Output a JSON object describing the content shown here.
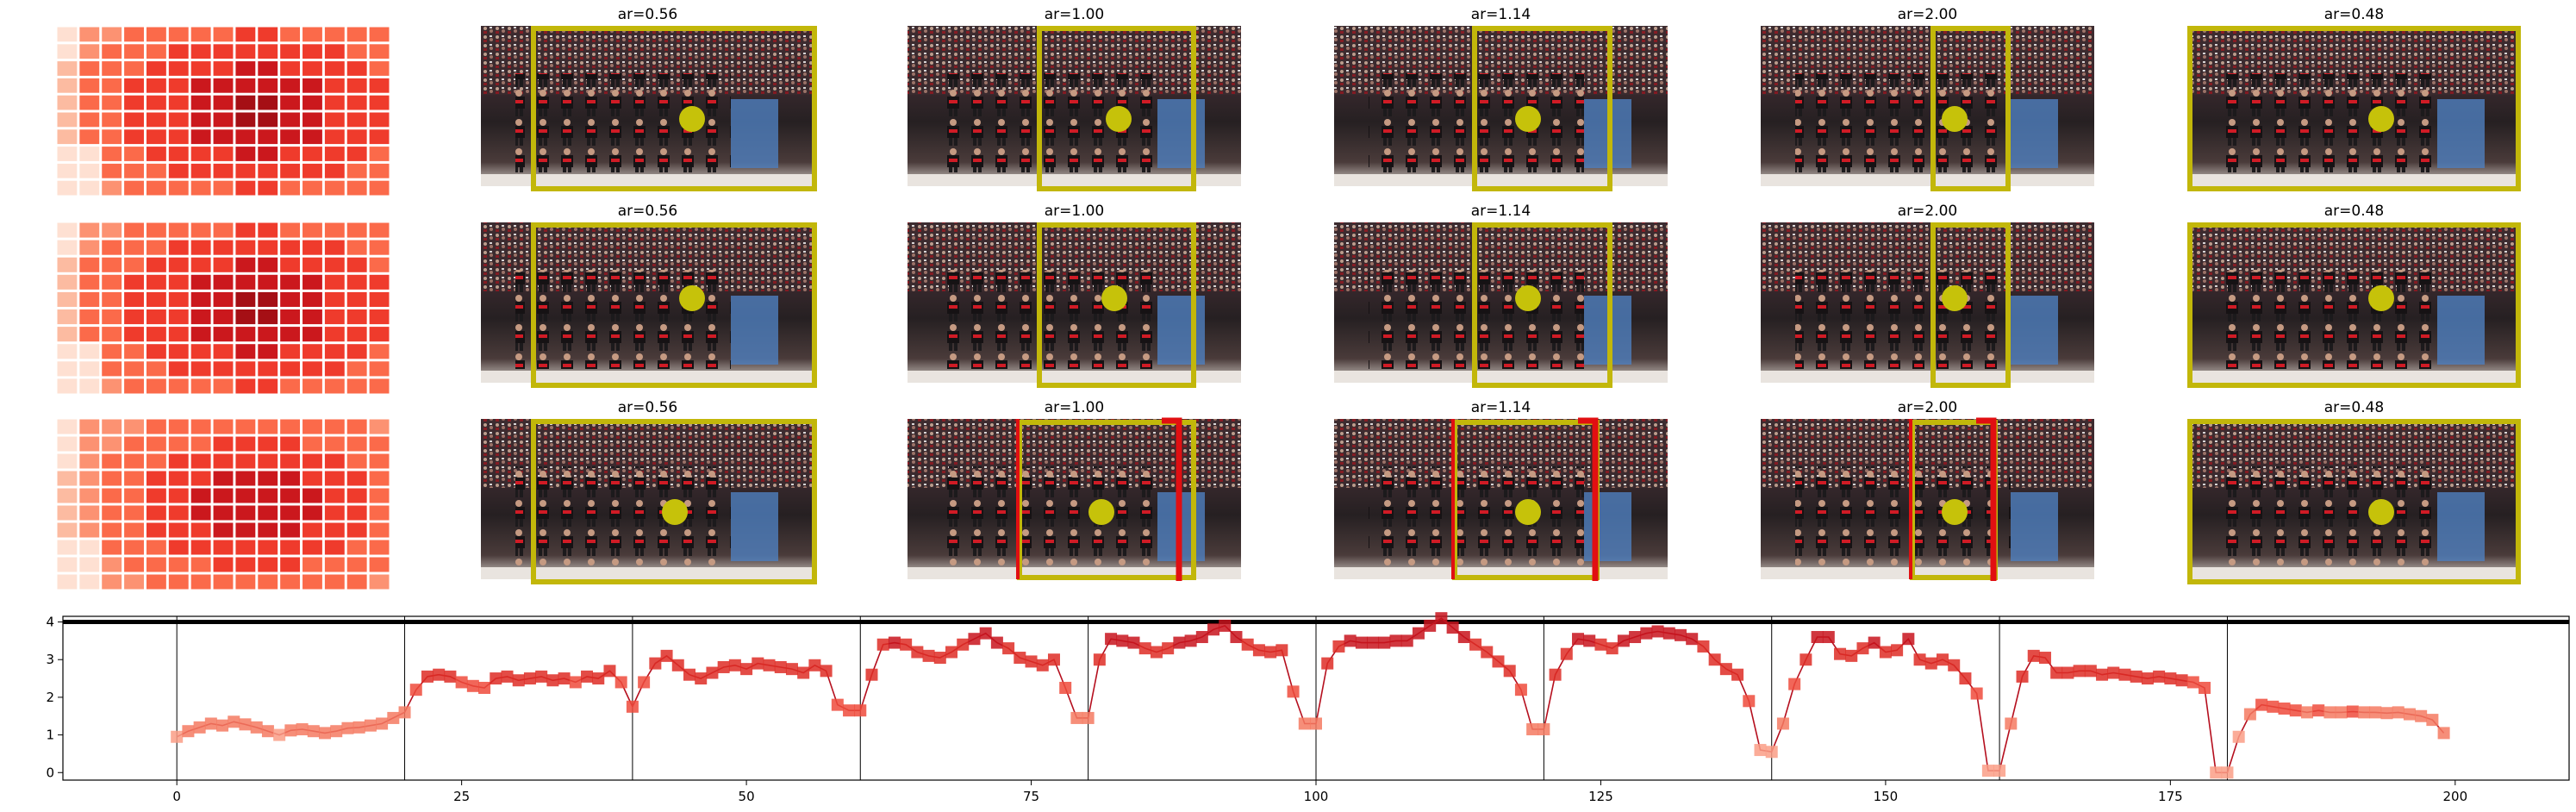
{
  "figure": {
    "panel_titles": [
      "ar=0.56",
      "ar=1.00",
      "ar=1.14",
      "ar=2.00",
      "ar=0.48"
    ],
    "box_color": "#c2b70a",
    "point_color": "#c6c20a",
    "extra_box_color": "#e10f12",
    "heatmap_colormap": "Reds"
  },
  "chart_data": [
    {
      "type": "line",
      "title": "",
      "xlabel": "",
      "ylabel": "",
      "xlim": [
        -10,
        210
      ],
      "ylim": [
        -0.2,
        4.15
      ],
      "xticks": [
        0,
        25,
        50,
        75,
        100,
        125,
        150,
        175,
        200
      ],
      "yticks": [
        0,
        1,
        2,
        3,
        4
      ],
      "vlines": [
        0,
        20,
        40,
        60,
        80,
        100,
        120,
        140,
        160,
        180
      ],
      "hline": 4.0,
      "line_color": "#b50f1e",
      "marker": "square",
      "series": [
        {
          "x_start": 0,
          "values": [
            0.95,
            1.1,
            1.2,
            1.3,
            1.25,
            1.35,
            1.28,
            1.2,
            1.1,
            1.0,
            1.12,
            1.15,
            1.1,
            1.05,
            1.1,
            1.18,
            1.2,
            1.25,
            1.3,
            1.45,
            1.6,
            2.2,
            2.55,
            2.6,
            2.55,
            2.4,
            2.3,
            2.25,
            2.5,
            2.55,
            2.45,
            2.5,
            2.55,
            2.45,
            2.5,
            2.4,
            2.55,
            2.5,
            2.7,
            2.4,
            1.75,
            2.4,
            2.9,
            3.1,
            2.85,
            2.6,
            2.5,
            2.65,
            2.8,
            2.85,
            2.75,
            2.9,
            2.85,
            2.8,
            2.75,
            2.65,
            2.85,
            2.7,
            1.8,
            1.65,
            1.65,
            2.6,
            3.4,
            3.45,
            3.4,
            3.2,
            3.1,
            3.05,
            3.2,
            3.4,
            3.55,
            3.7,
            3.45,
            3.3,
            3.05,
            2.95,
            2.85,
            3.0,
            2.25,
            1.45,
            1.45,
            3.0,
            3.55,
            3.5,
            3.45,
            3.3,
            3.2,
            3.3,
            3.45,
            3.5,
            3.6,
            3.8,
            3.9,
            3.6,
            3.4,
            3.25,
            3.2,
            3.25,
            2.15,
            1.3,
            1.3,
            2.9,
            3.35,
            3.5,
            3.45,
            3.45,
            3.45,
            3.5,
            3.5,
            3.7,
            3.9,
            4.1,
            3.85,
            3.6,
            3.4,
            3.2,
            2.95,
            2.7,
            2.2,
            1.15,
            1.15,
            2.6,
            3.15,
            3.55,
            3.5,
            3.4,
            3.3,
            3.5,
            3.6,
            3.7,
            3.75,
            3.7,
            3.65,
            3.55,
            3.35,
            3.0,
            2.75,
            2.6,
            1.9,
            0.6,
            0.55,
            1.3,
            2.35,
            3.0,
            3.6,
            3.6,
            3.15,
            3.1,
            3.3,
            3.45,
            3.2,
            3.25,
            3.55,
            3.0,
            2.9,
            3.0,
            2.85,
            2.5,
            2.1,
            0.05,
            0.05,
            1.3,
            2.55,
            3.1,
            3.05,
            2.65,
            2.65,
            2.7,
            2.7,
            2.6,
            2.65,
            2.6,
            2.55,
            2.5,
            2.55,
            2.5,
            2.45,
            2.4,
            2.25,
            0.0,
            0.0,
            0.95,
            1.55,
            1.8,
            1.75,
            1.7,
            1.65,
            1.6,
            1.65,
            1.6,
            1.6,
            1.62,
            1.6,
            1.6,
            1.58,
            1.6,
            1.55,
            1.5,
            1.4,
            1.05
          ]
        }
      ]
    }
  ]
}
